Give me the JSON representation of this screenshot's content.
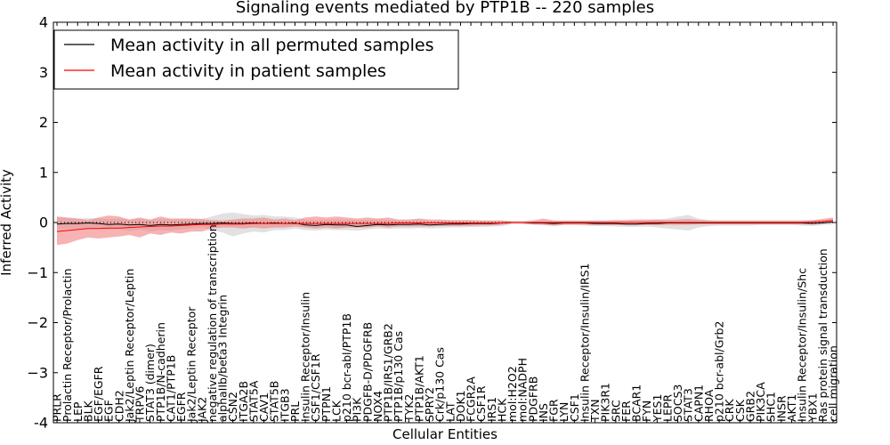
{
  "chart_data": {
    "type": "line",
    "title": "Signaling events mediated by PTP1B -- 220 samples",
    "xlabel": "Cellular Entities",
    "ylabel": "Inferred Activity",
    "ylim": [
      -4,
      4
    ],
    "yticks": [
      "-4",
      "−3",
      "−2",
      "−1",
      "0",
      "1",
      "2",
      "3",
      "4"
    ],
    "ytick_values": [
      -4,
      -3,
      -2,
      -1,
      0,
      1,
      2,
      3,
      4
    ],
    "legend": {
      "placement": "top-left",
      "entries": [
        {
          "label": "Mean activity in all permuted samples",
          "color": "#000000"
        },
        {
          "label": "Mean activity in patient samples",
          "color": "#ff0000"
        }
      ]
    },
    "colors": {
      "permuted_line": "#000000",
      "patient_line": "#ff0000",
      "permuted_band": "#c8c8c8",
      "patient_band": "#f08080"
    },
    "categories": [
      "PRLR",
      "Prolactin Receptor/Prolactin",
      "LEP",
      "BLK",
      "EGF/EGFR",
      "EGF",
      "CDH2",
      "Jak2/Leptin Receptor/Leptin",
      "TRPV6",
      "STAT3 (dimer)",
      "PTP1B/N-cadherin",
      "CAT1/PTP1B",
      "EGFR",
      "Jak2/Leptin Receptor",
      "JAK2",
      "negative regulation of transcription",
      "alphaIIb/beta3 Integrin",
      "CSN2",
      "ITGA2B",
      "STAT5A",
      "CAV1",
      "STAT5B",
      "ITGB3",
      "PRL",
      "Insulin Receptor/Insulin",
      "CSF1/CSF1R",
      "PTPN1",
      "LCK",
      "p210 bcr-abl/PTP1B",
      "PI3K",
      "PDGFB-D/PDGFRB",
      "NOX4",
      "PTP1B/IRS1/GRB2",
      "PTP1B/p130 Cas",
      "TYK2",
      "PTP1B/AKT1",
      "SPRY2",
      "Crk/p130 Cas",
      "LAT",
      "DOK1",
      "FCGR2A",
      "CSF1R",
      "IRS1",
      "HCK",
      "mol:H2O2",
      "mol:NADPH",
      "PDGFRB",
      "INS",
      "FGR",
      "LYN",
      "CSF1",
      "Insulin Receptor/Insulin/IRS1",
      "TXN",
      "PIK3R1",
      "SRC",
      "FER",
      "BCAR1",
      "FYN",
      "YES1",
      "LEPR",
      "SOCS3",
      "STAT3",
      "CAPN1",
      "RHOA",
      "p210 bcr-abl/Grb2",
      "CRK",
      "CSK",
      "GRB2",
      "PIK3CA",
      "SHC1",
      "INSR",
      "AKT1",
      "Insulin Receptor/Insulin/Shc",
      "YBX1",
      "Ras protein signal transduction",
      "cell migration"
    ],
    "series": [
      {
        "name": "Mean activity in all permuted samples",
        "values": [
          -0.03,
          -0.02,
          -0.02,
          -0.01,
          -0.02,
          -0.04,
          -0.03,
          -0.05,
          -0.04,
          -0.06,
          -0.04,
          -0.05,
          -0.04,
          -0.03,
          -0.02,
          -0.02,
          -0.01,
          -0.02,
          -0.02,
          -0.01,
          -0.02,
          -0.01,
          -0.02,
          -0.01,
          -0.05,
          -0.06,
          -0.04,
          -0.05,
          -0.05,
          -0.08,
          -0.06,
          -0.04,
          -0.05,
          -0.04,
          -0.04,
          -0.03,
          -0.05,
          -0.04,
          -0.03,
          -0.03,
          -0.02,
          -0.02,
          -0.02,
          -0.01,
          0,
          0,
          -0.01,
          -0.01,
          -0.02,
          -0.01,
          -0.01,
          -0.01,
          -0.02,
          -0.02,
          -0.02,
          -0.03,
          -0.03,
          -0.02,
          -0.02,
          -0.01,
          -0.01,
          -0.01,
          -0.01,
          -0.01,
          -0.01,
          -0.01,
          -0.01,
          -0.01,
          -0.01,
          -0.01,
          -0.01,
          -0.01,
          -0.01,
          -0.02,
          -0.01,
          0.01
        ],
        "lower": [
          -0.15,
          -0.12,
          -0.12,
          -0.11,
          -0.12,
          -0.14,
          -0.13,
          -0.17,
          -0.14,
          -0.18,
          -0.15,
          -0.16,
          -0.14,
          -0.12,
          -0.1,
          -0.15,
          -0.2,
          -0.28,
          -0.22,
          -0.18,
          -0.2,
          -0.15,
          -0.15,
          -0.12,
          -0.15,
          -0.16,
          -0.14,
          -0.15,
          -0.15,
          -0.16,
          -0.14,
          -0.12,
          -0.13,
          -0.12,
          -0.12,
          -0.11,
          -0.12,
          -0.11,
          -0.1,
          -0.1,
          -0.09,
          -0.09,
          -0.08,
          -0.07,
          -0.03,
          -0.03,
          -0.05,
          -0.05,
          -0.07,
          -0.05,
          -0.05,
          -0.06,
          -0.07,
          -0.07,
          -0.08,
          -0.09,
          -0.09,
          -0.08,
          -0.1,
          -0.12,
          -0.14,
          -0.16,
          -0.1,
          -0.07,
          -0.06,
          -0.06,
          -0.06,
          -0.06,
          -0.05,
          -0.05,
          -0.05,
          -0.05,
          -0.06,
          -0.07,
          -0.05,
          -0.04
        ],
        "upper": [
          0.1,
          0.09,
          0.08,
          0.09,
          0.08,
          0.07,
          0.08,
          0.06,
          0.07,
          0.05,
          0.07,
          0.06,
          0.07,
          0.07,
          0.07,
          0.12,
          0.18,
          0.2,
          0.17,
          0.14,
          0.15,
          0.12,
          0.12,
          0.1,
          0.06,
          0.05,
          0.06,
          0.06,
          0.06,
          0.05,
          0.05,
          0.06,
          0.05,
          0.05,
          0.05,
          0.05,
          0.04,
          0.04,
          0.04,
          0.04,
          0.04,
          0.04,
          0.04,
          0.04,
          0.03,
          0.03,
          0.03,
          0.03,
          0.03,
          0.03,
          0.03,
          0.03,
          0.03,
          0.03,
          0.03,
          0.03,
          0.03,
          0.04,
          0.06,
          0.08,
          0.12,
          0.15,
          0.08,
          0.05,
          0.04,
          0.04,
          0.04,
          0.04,
          0.04,
          0.04,
          0.04,
          0.04,
          0.04,
          0.04,
          0.05,
          0.07
        ]
      },
      {
        "name": "Mean activity in patient samples",
        "values": [
          -0.18,
          -0.16,
          -0.14,
          -0.12,
          -0.12,
          -0.11,
          -0.11,
          -0.1,
          -0.09,
          -0.08,
          -0.07,
          -0.07,
          -0.06,
          -0.05,
          -0.04,
          -0.04,
          -0.03,
          -0.03,
          -0.03,
          -0.02,
          -0.02,
          -0.02,
          -0.02,
          -0.02,
          -0.02,
          -0.02,
          -0.02,
          -0.02,
          -0.02,
          -0.02,
          -0.02,
          -0.02,
          -0.02,
          -0.01,
          -0.01,
          -0.01,
          -0.01,
          -0.01,
          -0.01,
          -0.01,
          -0.01,
          -0.01,
          -0.01,
          -0.01,
          0,
          0,
          0,
          0,
          0,
          0,
          0,
          0,
          0,
          0,
          0,
          0,
          0,
          0,
          0,
          0,
          0,
          0,
          0,
          0,
          0,
          0,
          0,
          0,
          0,
          0,
          0,
          0,
          0,
          0.01,
          0.02,
          0.04
        ],
        "lower": [
          -0.45,
          -0.42,
          -0.35,
          -0.3,
          -0.32,
          -0.3,
          -0.28,
          -0.25,
          -0.3,
          -0.22,
          -0.25,
          -0.2,
          -0.22,
          -0.18,
          -0.18,
          -0.12,
          -0.1,
          -0.1,
          -0.12,
          -0.1,
          -0.12,
          -0.1,
          -0.1,
          -0.08,
          -0.1,
          -0.12,
          -0.1,
          -0.12,
          -0.1,
          -0.1,
          -0.1,
          -0.08,
          -0.1,
          -0.08,
          -0.08,
          -0.08,
          -0.08,
          -0.07,
          -0.07,
          -0.07,
          -0.07,
          -0.06,
          -0.06,
          -0.05,
          -0.02,
          -0.02,
          -0.04,
          -0.05,
          -0.06,
          -0.05,
          -0.05,
          -0.05,
          -0.05,
          -0.05,
          -0.05,
          -0.05,
          -0.05,
          -0.05,
          -0.05,
          -0.05,
          -0.05,
          -0.05,
          -0.04,
          -0.04,
          -0.04,
          -0.04,
          -0.04,
          -0.04,
          -0.04,
          -0.04,
          -0.04,
          -0.04,
          -0.04,
          -0.03,
          -0.02,
          0
        ],
        "upper": [
          0.12,
          0.1,
          0.08,
          0.05,
          0.1,
          0.14,
          0.12,
          0.06,
          0.1,
          0.06,
          0.12,
          0.08,
          0.08,
          0.08,
          0.07,
          0.05,
          0.04,
          0.06,
          0.08,
          0.08,
          0.1,
          0.06,
          0.08,
          0.05,
          0.1,
          0.12,
          0.1,
          0.12,
          0.1,
          0.08,
          0.1,
          0.08,
          0.1,
          0.06,
          0.06,
          0.08,
          0.06,
          0.06,
          0.05,
          0.05,
          0.05,
          0.04,
          0.04,
          0.04,
          0.02,
          0.02,
          0.04,
          0.08,
          0.04,
          0.04,
          0.04,
          0.04,
          0.04,
          0.04,
          0.05,
          0.05,
          0.06,
          0.06,
          0.06,
          0.05,
          0.06,
          0.07,
          0.05,
          0.04,
          0.04,
          0.04,
          0.04,
          0.04,
          0.04,
          0.04,
          0.04,
          0.04,
          0.04,
          0.05,
          0.07,
          0.1
        ]
      }
    ]
  }
}
